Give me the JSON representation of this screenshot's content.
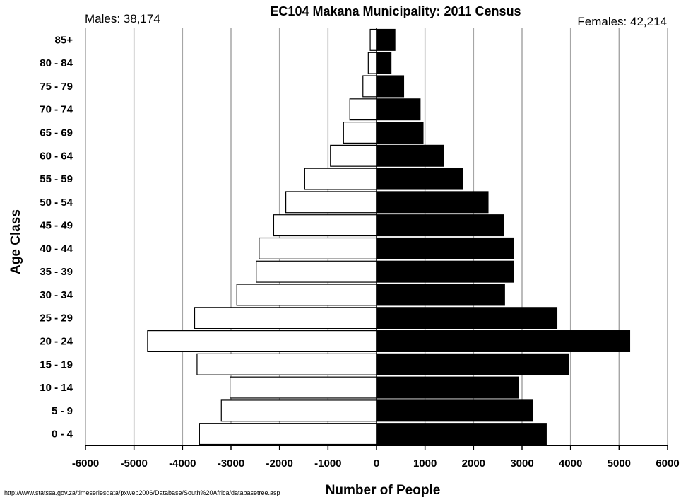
{
  "chart_data": {
    "type": "bar",
    "orientation": "horizontal",
    "title": "EC104 Makana Municipality: 2011 Census",
    "xlabel": "Number of People",
    "ylabel": "Age Class",
    "xlim": [
      -6000,
      6000
    ],
    "x_ticks": [
      -6000,
      -5000,
      -4000,
      -3000,
      -2000,
      -1000,
      0,
      1000,
      2000,
      3000,
      4000,
      5000,
      6000
    ],
    "x_tick_labels": [
      "-6000",
      "-5000",
      "-4000",
      "-3000",
      "-2000",
      "-1000",
      "0",
      "1000",
      "2000",
      "3000",
      "4000",
      "5000",
      "6000"
    ],
    "grid": "vertical",
    "categories": [
      "0 - 4",
      "5 - 9",
      "10 - 14",
      "15 - 19",
      "20 - 24",
      "25 - 29",
      "30 - 34",
      "35 - 39",
      "40 - 44",
      "45 - 49",
      "50 - 54",
      "55 - 59",
      "60 - 64",
      "65 - 69",
      "70 - 74",
      "75 - 79",
      "80 - 84",
      "85+"
    ],
    "series": [
      {
        "name": "Males",
        "label": "Males: 38,174",
        "color": "#ffffff",
        "values": [
          -3650,
          -3200,
          -3020,
          -3700,
          -4720,
          -3750,
          -2880,
          -2480,
          -2420,
          -2120,
          -1870,
          -1480,
          -950,
          -680,
          -550,
          -280,
          -170,
          -130
        ]
      },
      {
        "name": "Females",
        "label": "Females: 42,214",
        "color": "#000000",
        "values": [
          3500,
          3220,
          2930,
          3960,
          5220,
          3720,
          2640,
          2820,
          2820,
          2620,
          2300,
          1780,
          1380,
          960,
          900,
          560,
          300,
          380
        ]
      }
    ],
    "source": "http://www.statssa.gov.za/timeseriesdata/pxweb2006/Database/South%20Africa/databasetree.asp"
  }
}
